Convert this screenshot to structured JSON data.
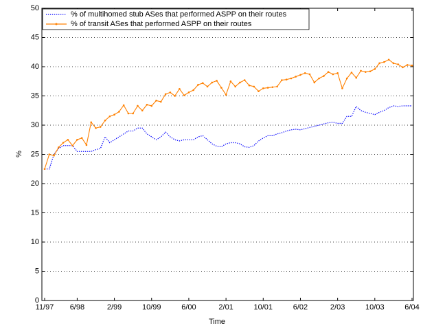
{
  "chart_data": {
    "type": "line",
    "x_label": "Time",
    "y_label": "%",
    "categories": [
      "11/97",
      null,
      null,
      null,
      null,
      null,
      null,
      "6/98",
      null,
      null,
      null,
      null,
      null,
      null,
      null,
      "2/99",
      null,
      null,
      null,
      null,
      null,
      null,
      null,
      "10/99",
      null,
      null,
      null,
      null,
      null,
      null,
      null,
      "6/00",
      null,
      null,
      null,
      null,
      null,
      null,
      null,
      "2/01",
      null,
      null,
      null,
      null,
      null,
      null,
      null,
      "10/01",
      null,
      null,
      null,
      null,
      null,
      null,
      null,
      "6/02",
      null,
      null,
      null,
      null,
      null,
      null,
      null,
      "2/03",
      null,
      null,
      null,
      null,
      null,
      null,
      null,
      "10/03",
      null,
      null,
      null,
      null,
      null,
      null,
      null,
      "6/04"
    ],
    "series": [
      {
        "name": "% of multihomed stub ASes that performed ASPP on their routes",
        "color": "#0000ff",
        "values": [
          22.5,
          22.5,
          25,
          26,
          26.5,
          26.5,
          26.5,
          25.5,
          25.5,
          25.5,
          25.5,
          25.8,
          26,
          28,
          27,
          27.5,
          28,
          28.5,
          29,
          29,
          29.5,
          29.5,
          28.5,
          28,
          27.5,
          28,
          28.8,
          28,
          27.5,
          27.3,
          27.5,
          27.5,
          27.5,
          28,
          28.2,
          27.5,
          26.8,
          26.4,
          26.3,
          26.8,
          27,
          27,
          26.8,
          26.3,
          26.2,
          26.5,
          27.3,
          27.8,
          28.2,
          28.2,
          28.5,
          28.7,
          29,
          29.2,
          29.3,
          29.2,
          29.4,
          29.6,
          29.8,
          30,
          30.2,
          30.4,
          30.5,
          30.3,
          30.3,
          31.5,
          31.5,
          33.2,
          32.5,
          32.2,
          32,
          31.8,
          32.2,
          32.5,
          33,
          33.3,
          33.2,
          33.3,
          33.3,
          33.3
        ]
      },
      {
        "name": "% of transit ASes that performed ASPP on their routes",
        "color": "#ff8000",
        "values": [
          22.5,
          25,
          24.8,
          26.2,
          27,
          27.5,
          26.5,
          27.5,
          27.8,
          26.6,
          30.5,
          29.5,
          29.7,
          30.8,
          31.5,
          31.8,
          32.3,
          33.4,
          32,
          32,
          33.3,
          32.5,
          33.5,
          33.3,
          34.2,
          34,
          35.3,
          35.6,
          35,
          36.2,
          35.1,
          35.6,
          36,
          36.9,
          37.2,
          36.6,
          37.3,
          37.6,
          36.4,
          35.2,
          37.5,
          36.6,
          37.3,
          37.7,
          36.8,
          36.6,
          35.8,
          36.3,
          36.4,
          36.5,
          36.6,
          37.7,
          37.8,
          38,
          38.3,
          38.6,
          38.9,
          38.7,
          37.3,
          38,
          38.4,
          39.1,
          38.7,
          38.9,
          36.3,
          38,
          39,
          38.1,
          39.3,
          39.1,
          39.2,
          39.6,
          40.6,
          40.8,
          41.2,
          40.6,
          40.4,
          39.9,
          40.3,
          40.2
        ]
      }
    ],
    "ylim": [
      0,
      50
    ],
    "yticks": [
      0,
      5,
      10,
      15,
      20,
      25,
      30,
      35,
      40,
      45,
      50
    ],
    "grid": true,
    "legend": "top-left"
  }
}
